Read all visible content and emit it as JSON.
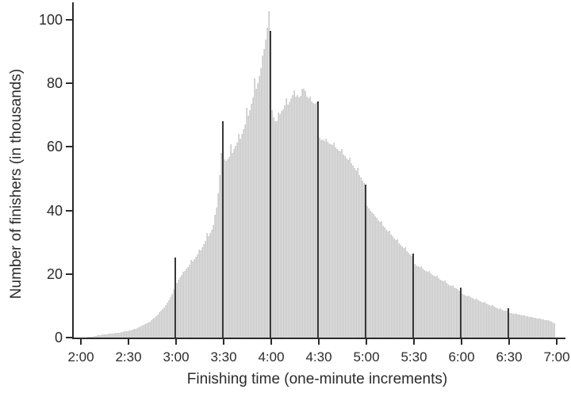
{
  "figure": {
    "background": "#ffffff",
    "bar_color": "#d9d9d9",
    "bar_edge_color": "#c9c9c9",
    "spike_color": "#383838",
    "axis_color": "#2b2b2b",
    "text_color": "#2b2b2b"
  },
  "chart_data": {
    "type": "bar",
    "title": "",
    "xlabel": "Finishing time (one-minute increments)",
    "ylabel": "Number of finishers (in thousands)",
    "bin_minutes": 1,
    "x_start_label": "2:00",
    "x_end_label": "7:00",
    "x_tick_labels": [
      "2:00",
      "2:30",
      "3:00",
      "3:30",
      "4:00",
      "4:30",
      "5:00",
      "5:30",
      "6:00",
      "6:30",
      "7:00"
    ],
    "y_ticks": [
      0,
      20,
      40,
      60,
      80,
      100
    ],
    "ylim": [
      0,
      105
    ],
    "grid": false,
    "legend": "none",
    "highlight_times": [
      "3:00",
      "3:30",
      "4:00",
      "4:30",
      "5:00",
      "5:30",
      "6:00",
      "6:30"
    ],
    "highlight_indices": [
      60,
      90,
      120,
      150,
      180,
      210,
      240,
      270
    ],
    "highlight_values_thousands": [
      25.2,
      68.0,
      96.6,
      74.3,
      48.2,
      26.4,
      15.7,
      9.3
    ],
    "peak": {
      "time": "3:59",
      "value_thousands": 102.8
    },
    "values_thousands": [
      0.05,
      0.06,
      0.07,
      0.09,
      0.11,
      0.14,
      0.18,
      0.25,
      0.35,
      0.5,
      0.6,
      0.7,
      0.75,
      0.8,
      0.9,
      1.0,
      1.05,
      1.1,
      1.15,
      1.2,
      1.3,
      1.35,
      1.4,
      1.45,
      1.5,
      1.6,
      1.7,
      1.8,
      1.9,
      2.0,
      2.1,
      2.2,
      2.35,
      2.5,
      2.65,
      2.8,
      3.0,
      3.2,
      3.45,
      3.7,
      4.0,
      4.25,
      4.5,
      4.8,
      5.1,
      5.5,
      5.9,
      6.3,
      6.8,
      7.3,
      7.9,
      8.4,
      9.0,
      9.6,
      10.2,
      10.9,
      11.6,
      12.6,
      13.7,
      15.2,
      25.2,
      17.3,
      18.1,
      19.0,
      19.6,
      20.6,
      20.9,
      21.6,
      22.3,
      23.0,
      24.5,
      24.0,
      24.8,
      25.5,
      26.2,
      27.6,
      27.4,
      28.4,
      29.4,
      30.4,
      32.8,
      31.8,
      32.8,
      34.0,
      35.5,
      38.6,
      41.0,
      45.5,
      51.0,
      58.0,
      68.0,
      56.0,
      55.5,
      56.2,
      56.8,
      60.9,
      58.2,
      59.3,
      60.3,
      61.4,
      64.2,
      62.6,
      64.0,
      65.5,
      67.2,
      72.3,
      69.8,
      71.6,
      73.5,
      75.6,
      81.6,
      78.2,
      80.1,
      82.3,
      84.8,
      88.8,
      90.8,
      93.8,
      97.6,
      102.8,
      96.6,
      71.5,
      69.3,
      68.2,
      68.0,
      70.8,
      70.4,
      71.2,
      71.8,
      73.0,
      75.2,
      73.4,
      74.0,
      75.3,
      76.4,
      77.9,
      75.9,
      76.4,
      75.6,
      76.1,
      78.4,
      78.2,
      77.6,
      75.9,
      75.2,
      75.7,
      74.4,
      73.7,
      73.5,
      74.0,
      74.3,
      62.8,
      62.2,
      62.4,
      61.9,
      62.6,
      61.5,
      61.2,
      60.9,
      60.5,
      61.3,
      59.8,
      59.3,
      58.9,
      58.5,
      59.4,
      57.6,
      57.0,
      56.4,
      55.8,
      56.6,
      54.8,
      54.1,
      53.4,
      52.7,
      53.3,
      51.2,
      50.3,
      49.4,
      48.6,
      48.2,
      41.3,
      40.6,
      40.0,
      39.4,
      38.9,
      38.2,
      37.6,
      37.0,
      36.4,
      36.6,
      35.2,
      34.6,
      34.0,
      33.4,
      33.6,
      32.4,
      31.8,
      31.2,
      30.7,
      30.9,
      29.7,
      29.2,
      28.7,
      28.2,
      28.4,
      27.3,
      26.8,
      26.3,
      25.8,
      26.4,
      23.2,
      22.8,
      22.5,
      22.2,
      22.4,
      21.6,
      21.3,
      21.0,
      20.7,
      20.9,
      20.1,
      19.8,
      19.5,
      19.2,
      19.4,
      18.6,
      18.3,
      18.0,
      17.7,
      17.9,
      17.1,
      16.8,
      16.5,
      16.2,
      16.4,
      15.7,
      15.4,
      15.1,
      14.8,
      15.7,
      13.6,
      13.4,
      13.2,
      13.0,
      13.1,
      12.6,
      12.4,
      12.2,
      12.0,
      12.1,
      11.6,
      11.4,
      11.2,
      11.0,
      11.1,
      10.6,
      10.4,
      10.2,
      10.0,
      10.1,
      9.7,
      9.5,
      9.3,
      9.1,
      9.2,
      8.8,
      8.6,
      8.5,
      8.4,
      9.3,
      7.8,
      7.7,
      7.6,
      7.5,
      7.6,
      7.3,
      7.2,
      7.1,
      7.0,
      7.1,
      6.8,
      6.7,
      6.6,
      6.5,
      6.6,
      6.3,
      6.2,
      6.1,
      6.0,
      6.1,
      5.8,
      5.7,
      5.6,
      5.5,
      5.4,
      5.2,
      5.0,
      4.7,
      4.4
    ]
  }
}
